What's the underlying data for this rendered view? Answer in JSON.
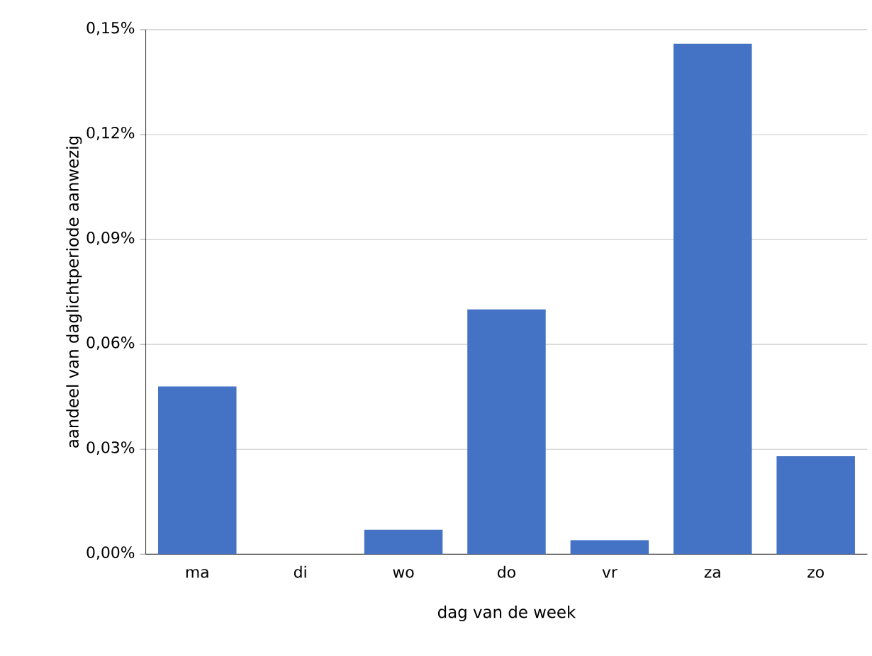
{
  "chart_data": {
    "type": "bar",
    "xlabel": "dag van de week",
    "ylabel": "aandeel van daglichtperiode aanwezig",
    "categories": [
      "ma",
      "di",
      "wo",
      "do",
      "vr",
      "za",
      "zo"
    ],
    "values": [
      0.048,
      0,
      0.007,
      0.07,
      0.004,
      0.146,
      0.028
    ],
    "color": "#4472c4",
    "ylim": [
      0,
      0.15
    ],
    "yticks": [
      {
        "value": 0,
        "label": "0,00%"
      },
      {
        "value": 0.03,
        "label": "0,03%"
      },
      {
        "value": 0.06,
        "label": "0,06%"
      },
      {
        "value": 0.09,
        "label": "0,09%"
      },
      {
        "value": 0.12,
        "label": "0,12%"
      },
      {
        "value": 0.15,
        "label": "0,15%"
      }
    ],
    "grid": "y"
  }
}
